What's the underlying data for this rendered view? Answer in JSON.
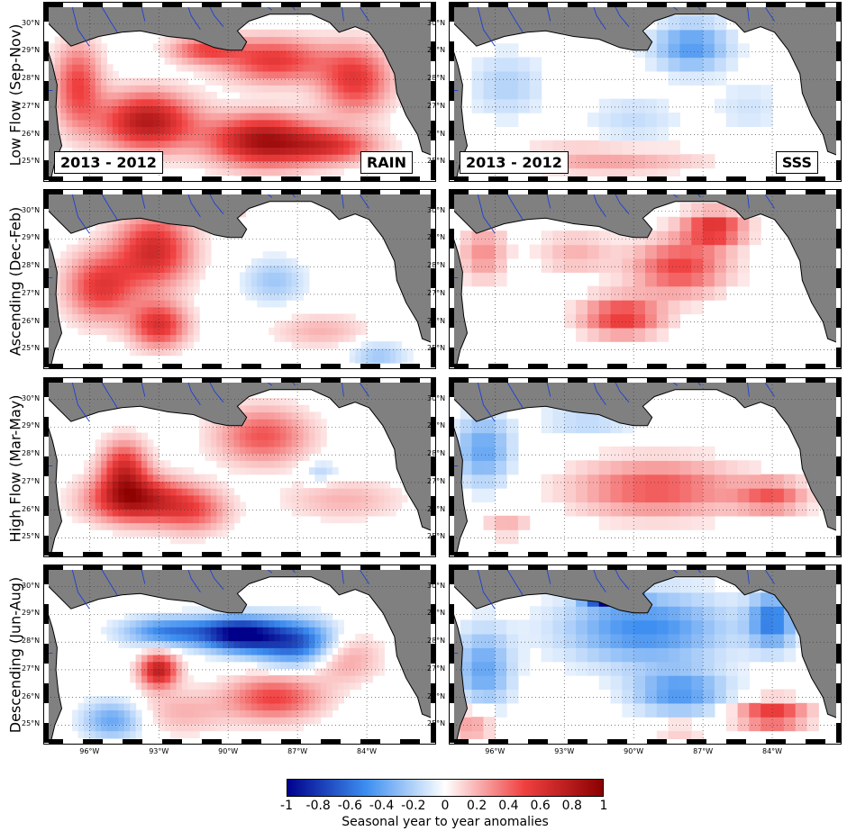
{
  "rows": [
    {
      "label": "Low Flow (Sep-Nov)"
    },
    {
      "label": "Ascending (Dec-Feb)"
    },
    {
      "label": "High Flow (Mar-May)"
    },
    {
      "label": "Descending (Jun-Aug)"
    }
  ],
  "columns": [
    {
      "variable": "RAIN"
    },
    {
      "variable": "SSS"
    }
  ],
  "comparison_label": "2013 - 2012",
  "latitude_labels": [
    "30°N",
    "29°N",
    "28°N",
    "27°N",
    "26°N",
    "25°N"
  ],
  "longitude_labels": [
    "96°W",
    "93°W",
    "90°W",
    "87°W",
    "84°W"
  ],
  "colorbar": {
    "title": "Seasonal year to year anomalies",
    "ticks": [
      "-1",
      "-0.8",
      "-0.6",
      "-0.4",
      "-0.2",
      "0",
      "0.2",
      "0.4",
      "0.6",
      "0.8",
      "1"
    ],
    "range": [
      -1,
      1
    ],
    "negative_color": "#00008b",
    "zero_color": "#ffffff",
    "positive_color": "#8b0000"
  },
  "map": {
    "land_color": "#808080",
    "water_color": "#ffffff",
    "river_color": "#1c3fd6",
    "lon_range": [
      -98,
      -81
    ],
    "lat_range": [
      24.3,
      30.8
    ]
  },
  "anomaly_blobs": [
    [
      [
        [
          -93.5,
          26.5,
          2.0,
          1.0,
          0.8
        ],
        [
          -88.5,
          25.8,
          2.3,
          0.9,
          0.85
        ],
        [
          -88,
          28.7,
          2.2,
          0.8,
          0.55
        ],
        [
          -84.5,
          28.0,
          1.5,
          1.2,
          0.55
        ],
        [
          -96.5,
          27.8,
          1.0,
          1.5,
          0.5
        ],
        [
          -91,
          29.1,
          1.5,
          0.5,
          0.45
        ],
        [
          -85.5,
          25.6,
          2.0,
          0.6,
          0.5
        ]
      ],
      [
        [
          -87.5,
          29.2,
          1.6,
          0.9,
          -0.45
        ],
        [
          -95.5,
          27.8,
          1.6,
          1.2,
          -0.2
        ],
        [
          -90,
          26.5,
          2.0,
          1.0,
          -0.15
        ],
        [
          -91,
          25.1,
          4.0,
          0.6,
          0.25
        ],
        [
          -85,
          27.0,
          1.5,
          1.0,
          -0.12
        ]
      ],
      [
        [
          -93.2,
          28.6,
          1.6,
          1.3,
          0.65
        ],
        [
          -95.5,
          27.3,
          1.5,
          1.2,
          0.55
        ],
        [
          -93.0,
          25.9,
          1.2,
          0.8,
          0.6
        ],
        [
          -91.0,
          30.0,
          1.2,
          0.3,
          0.7
        ],
        [
          -88,
          27.5,
          1.3,
          0.8,
          -0.25
        ],
        [
          -86,
          25.7,
          2.0,
          0.6,
          0.2
        ],
        [
          -83.5,
          24.8,
          1.2,
          0.5,
          -0.25
        ]
      ],
      [
        [
          -90.5,
          26.2,
          1.7,
          0.7,
          0.55
        ],
        [
          -88,
          28.0,
          2.0,
          1.0,
          0.5
        ],
        [
          -86.5,
          29.4,
          1.3,
          0.6,
          0.6
        ],
        [
          -92.5,
          28.5,
          1.6,
          0.8,
          0.2
        ],
        [
          -96.5,
          28.5,
          1.0,
          1.0,
          0.3
        ]
      ],
      [
        [
          -94.0,
          26.4,
          2.0,
          0.8,
          0.8
        ],
        [
          -94.5,
          27.5,
          1.0,
          1.0,
          0.6
        ],
        [
          -88.5,
          28.7,
          2.0,
          1.0,
          0.45
        ],
        [
          -91.5,
          26.0,
          1.5,
          0.8,
          0.4
        ],
        [
          -85,
          26.4,
          2.5,
          0.7,
          0.2
        ],
        [
          -86,
          27.4,
          0.8,
          0.4,
          -0.2
        ]
      ],
      [
        [
          -96.5,
          28.2,
          1.2,
          1.3,
          -0.4
        ],
        [
          -92,
          29.3,
          2.0,
          0.5,
          -0.2
        ],
        [
          -89,
          26.8,
          3.5,
          1.0,
          0.45
        ],
        [
          -84,
          26.5,
          1.5,
          0.6,
          0.4
        ],
        [
          -95.5,
          25.5,
          1.0,
          0.5,
          0.2
        ]
      ],
      [
        [
          -89.5,
          28.3,
          1.7,
          0.6,
          -0.95
        ],
        [
          -87,
          28.0,
          1.8,
          0.8,
          -0.7
        ],
        [
          -92.5,
          28.4,
          2.0,
          0.5,
          -0.55
        ],
        [
          -93,
          27.0,
          0.8,
          0.6,
          0.75
        ],
        [
          -88,
          26.0,
          2.0,
          0.8,
          0.5
        ],
        [
          -92,
          25.5,
          2.0,
          0.8,
          0.2
        ],
        [
          -85,
          27.5,
          1.5,
          0.9,
          0.3
        ],
        [
          -95,
          25.2,
          1.3,
          0.7,
          -0.4
        ]
      ],
      [
        [
          -89.5,
          28.5,
          3.5,
          1.3,
          -0.5
        ],
        [
          -91,
          29.6,
          1.0,
          0.3,
          -0.9
        ],
        [
          -96.5,
          27.0,
          1.2,
          1.5,
          -0.4
        ],
        [
          -84,
          28.8,
          1.0,
          1.0,
          -0.55
        ],
        [
          -88,
          26.2,
          2.0,
          0.8,
          -0.45
        ],
        [
          -84,
          25.4,
          1.5,
          0.5,
          0.6
        ],
        [
          -97,
          25.0,
          1.0,
          0.8,
          0.3
        ],
        [
          -88,
          24.8,
          1.0,
          0.4,
          0.2
        ]
      ]
    ]
  ]
}
